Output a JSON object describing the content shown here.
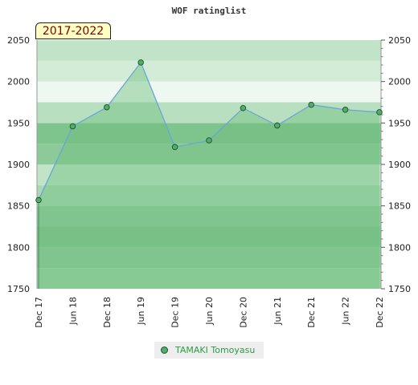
{
  "chart_data": {
    "type": "area",
    "title": "WOF ratinglist",
    "period": "2017-2022",
    "x": [
      "Dec 17",
      "Jun 18",
      "Dec 18",
      "Jun 19",
      "Dec 19",
      "Jun 20",
      "Dec 20",
      "Jun 21",
      "Dec 21",
      "Jun 22",
      "Dec 22"
    ],
    "series": [
      {
        "name": "TAMAKI Tomoyasu",
        "values": [
          1857,
          1946,
          1969,
          2023,
          1921,
          1929,
          1968,
          1947,
          1972,
          1966,
          1963
        ]
      }
    ],
    "ylim": [
      1750,
      2050
    ],
    "yticks": [
      1750,
      1800,
      1850,
      1900,
      1950,
      2000,
      2050
    ],
    "xlabel": "",
    "ylabel": "",
    "legend": "bottom-center",
    "colors": {
      "line": "#6aa6d8",
      "marker": "#4fae6a",
      "fill": "#6fbf7e"
    }
  }
}
